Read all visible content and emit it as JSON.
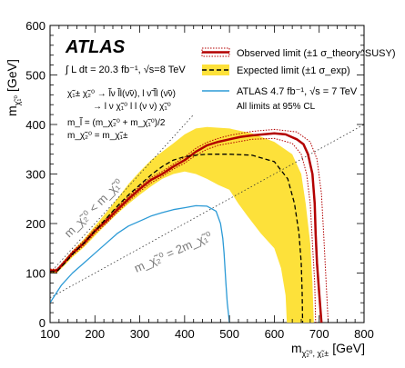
{
  "chart_data": {
    "type": "line",
    "xlabel": "m",
    "xlabel_sub": "χ̃₂⁰, χ̃₁±",
    "xlabel_unit": "[GeV]",
    "ylabel": "m",
    "ylabel_sub": "χ̃₁⁰",
    "ylabel_unit": "[GeV]",
    "xlim": [
      100,
      800
    ],
    "ylim": [
      0,
      600
    ],
    "x_ticks": [
      100,
      200,
      300,
      400,
      500,
      600,
      700,
      800
    ],
    "y_ticks": [
      0,
      100,
      200,
      300,
      400,
      500,
      600
    ],
    "experiment": "ATLAS",
    "lumi_text": "∫ L dt = 20.3 fb⁻¹, √s=8 TeV",
    "process_line1": "χ̃₁± χ̃₂⁰ → l̃ν l̃l(ν̃ν), l ν̃ l̃l (ν̃ν)",
    "process_line2": "→ l ν χ̃₁⁰ l l (ν ν) χ̃₁⁰",
    "mass_line1": "m_l̃ = (m_χ̃₂⁰ + m_χ̃₁⁰)/2",
    "mass_line2": "m_χ̃₂⁰ = m_χ̃₁±",
    "region_label_1": "m_χ̃₂⁰ < m_χ̃₁⁰",
    "region_label_2": "m_χ̃₂⁰ = 2m_χ̃₁⁰",
    "legend": [
      {
        "label": "Observed limit (±1 σ_theory^SUSY)",
        "color": "#b30000",
        "style": "solid-with-dotted-band"
      },
      {
        "label": "Expected limit (±1 σ_exp)",
        "color": "#000000",
        "band_color": "#fde13a",
        "style": "dashed-with-band"
      },
      {
        "label": "ATLAS 4.7 fb⁻¹, √s = 7 TeV",
        "color": "#2b9ad6",
        "style": "solid"
      },
      {
        "label": "All limits at 95% CL",
        "style": "text"
      }
    ],
    "series": [
      {
        "name": "Observed limit",
        "color": "#b30000",
        "x": [
          100,
          115,
          120,
          135,
          150,
          175,
          200,
          225,
          250,
          275,
          300,
          325,
          350,
          375,
          400,
          425,
          450,
          475,
          500,
          525,
          550,
          575,
          600,
          625,
          650,
          665,
          675,
          685,
          690,
          692,
          695,
          700,
          705
        ],
        "y": [
          105,
          105,
          110,
          125,
          140,
          160,
          185,
          205,
          228,
          250,
          270,
          288,
          300,
          315,
          328,
          345,
          358,
          365,
          370,
          375,
          378,
          380,
          382,
          380,
          370,
          360,
          340,
          300,
          240,
          180,
          120,
          60,
          0
        ]
      },
      {
        "name": "Observed +1σ theory",
        "color": "#b30000",
        "dotted": true,
        "x": [
          100,
          115,
          135,
          150,
          175,
          200,
          225,
          250,
          275,
          300,
          325,
          350,
          375,
          400,
          425,
          450,
          475,
          500,
          550,
          600,
          650,
          680,
          695,
          705,
          710,
          715,
          720
        ],
        "y": [
          108,
          108,
          128,
          144,
          165,
          190,
          210,
          233,
          255,
          275,
          293,
          305,
          320,
          334,
          352,
          364,
          372,
          378,
          386,
          390,
          385,
          365,
          330,
          260,
          180,
          90,
          0
        ]
      },
      {
        "name": "Observed -1σ theory",
        "color": "#b30000",
        "dotted": true,
        "x": [
          100,
          115,
          135,
          150,
          175,
          200,
          225,
          250,
          275,
          300,
          325,
          350,
          375,
          400,
          425,
          450,
          475,
          500,
          550,
          600,
          640,
          660,
          672,
          680,
          685,
          690,
          692
        ],
        "y": [
          102,
          102,
          122,
          136,
          155,
          180,
          200,
          223,
          245,
          265,
          282,
          295,
          310,
          322,
          338,
          350,
          358,
          362,
          370,
          372,
          362,
          340,
          300,
          240,
          160,
          80,
          0
        ]
      },
      {
        "name": "Expected limit",
        "color": "#000000",
        "dashed": true,
        "x": [
          100,
          115,
          135,
          150,
          175,
          200,
          225,
          250,
          275,
          300,
          325,
          350,
          375,
          400,
          425,
          450,
          500,
          550,
          600,
          630,
          645,
          655,
          660,
          662,
          663
        ],
        "y": [
          103,
          103,
          122,
          138,
          160,
          185,
          210,
          235,
          258,
          278,
          298,
          315,
          328,
          335,
          338,
          340,
          340,
          338,
          325,
          290,
          240,
          180,
          120,
          60,
          0
        ]
      },
      {
        "name": "Expected ±1σ band upper",
        "band": "upper",
        "x": [
          100,
          115,
          135,
          150,
          175,
          200,
          225,
          250,
          275,
          300,
          325,
          350,
          375,
          400,
          425,
          450,
          500,
          550,
          600,
          640,
          660,
          670,
          680,
          685,
          688
        ],
        "y": [
          108,
          108,
          130,
          145,
          168,
          195,
          222,
          250,
          280,
          305,
          328,
          345,
          362,
          380,
          392,
          395,
          392,
          382,
          365,
          340,
          300,
          240,
          160,
          80,
          0
        ]
      },
      {
        "name": "Expected ±1σ band lower",
        "band": "lower",
        "x": [
          100,
          115,
          135,
          150,
          175,
          200,
          225,
          250,
          275,
          300,
          325,
          350,
          375,
          400,
          425,
          450,
          475,
          500,
          520,
          540,
          570,
          600,
          615,
          625,
          628
        ],
        "y": [
          100,
          100,
          118,
          132,
          152,
          175,
          198,
          220,
          240,
          258,
          275,
          290,
          300,
          305,
          300,
          290,
          278,
          268,
          240,
          215,
          180,
          150,
          110,
          55,
          0
        ]
      },
      {
        "name": "ATLAS 4.7 fb-1, 7 TeV",
        "color": "#2b9ad6",
        "x": [
          100,
          125,
          150,
          175,
          200,
          225,
          250,
          275,
          300,
          325,
          350,
          375,
          400,
          425,
          450,
          470,
          480,
          485,
          488,
          490,
          492,
          495,
          500
        ],
        "y": [
          40,
          75,
          100,
          120,
          140,
          160,
          180,
          195,
          205,
          215,
          222,
          228,
          232,
          236,
          235,
          225,
          200,
          170,
          140,
          110,
          80,
          40,
          0
        ]
      }
    ],
    "reference_lines": [
      {
        "name": "m_chi2 = m_chi1",
        "x": [
          100,
          420
        ],
        "y": [
          100,
          420
        ],
        "style": "dotted"
      },
      {
        "name": "m_chi2 = 2 m_chi1",
        "x": [
          100,
          800
        ],
        "y": [
          50,
          400
        ],
        "style": "dotted"
      }
    ]
  }
}
